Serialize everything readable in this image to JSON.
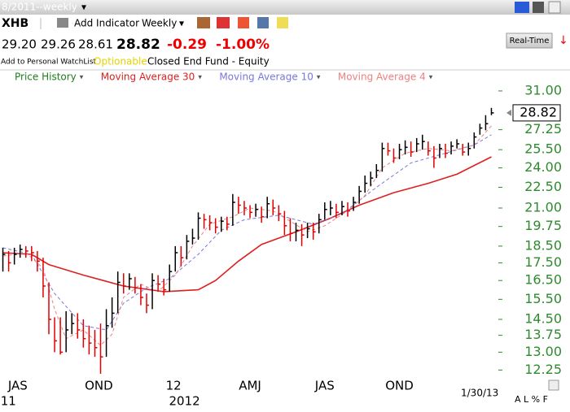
{
  "header": {
    "period": "8/2011--weekly",
    "symbol": "XHB",
    "add_indicator": "Add Indicator",
    "interval": "Weekly",
    "open": "29.20",
    "high": "29.26",
    "low": "28.61",
    "change": "-0.29",
    "change_pct": "-1.00%",
    "watchlist": "Add to Personal WatchList",
    "optionable": "Optionable",
    "fund_type": "Closed End Fund - Equity",
    "realtime": "Real-Time",
    "footer_buttons": "A L % F"
  },
  "chart_data": {
    "type": "ohlc",
    "legend": [
      "Price History",
      "Moving Average 30",
      "Moving Average 10",
      "Moving Average 4"
    ],
    "legend_colors": [
      "#1a7f1a",
      "#dd2020",
      "#7777dd",
      "#ee8080"
    ],
    "up_color": "#000000",
    "down_color": "#e00000",
    "high": [
      18.4,
      18.2,
      18.4,
      18.6,
      18.5,
      18.5,
      18.2,
      17.8,
      16.4,
      14.6,
      14.6,
      14.9,
      14.8,
      14.8,
      14.5,
      14.2,
      14.0,
      14.3,
      15.0,
      15.6,
      17.0,
      16.9,
      16.9,
      16.7,
      16.3,
      15.8,
      16.9,
      16.8,
      16.6,
      17.4,
      18.5,
      18.5,
      19.2,
      19.6,
      20.7,
      20.6,
      20.5,
      20.3,
      20.4,
      20.4,
      22.0,
      21.8,
      21.5,
      21.2,
      21.3,
      21.1,
      21.8,
      21.6,
      21.2,
      20.8,
      20.3,
      20.0,
      19.9,
      20.0,
      20.0,
      20.6,
      21.4,
      21.5,
      21.3,
      21.5,
      21.4,
      21.8,
      22.6,
      23.4,
      23.7,
      24.3,
      26.1,
      26.1,
      25.6,
      26.0,
      26.3,
      26.2,
      26.5,
      26.8,
      26.2,
      25.8,
      26.0,
      26.0,
      26.2,
      26.4,
      26.0,
      26.1,
      27.0,
      27.8,
      28.6,
      29.3
    ],
    "low": [
      17.0,
      17.0,
      17.4,
      17.8,
      17.8,
      17.6,
      17.0,
      15.6,
      13.8,
      13.0,
      12.9,
      13.0,
      13.8,
      13.6,
      13.2,
      12.9,
      12.8,
      12.1,
      12.8,
      14.1,
      14.8,
      15.8,
      16.0,
      15.8,
      15.2,
      14.8,
      15.0,
      15.9,
      15.7,
      15.9,
      17.0,
      17.3,
      17.7,
      18.6,
      18.9,
      19.6,
      19.5,
      19.3,
      19.4,
      19.5,
      19.8,
      20.6,
      20.5,
      20.3,
      20.4,
      20.0,
      20.3,
      20.5,
      20.1,
      19.2,
      18.8,
      18.8,
      18.5,
      19.0,
      18.9,
      19.3,
      20.2,
      20.5,
      20.3,
      20.5,
      20.4,
      20.8,
      21.3,
      22.1,
      22.6,
      23.2,
      23.7,
      25.0,
      24.4,
      24.7,
      25.1,
      24.9,
      25.3,
      25.5,
      25.0,
      24.0,
      24.8,
      24.8,
      25.1,
      25.6,
      25.0,
      25.0,
      25.6,
      26.8,
      27.2,
      28.6
    ],
    "close": [
      18.0,
      17.5,
      18.0,
      18.3,
      18.2,
      18.1,
      17.6,
      16.2,
      14.5,
      13.5,
      13.0,
      14.0,
      14.3,
      14.0,
      13.6,
      13.4,
      13.2,
      12.8,
      14.2,
      14.8,
      16.4,
      16.2,
      16.6,
      16.1,
      15.6,
      15.2,
      16.5,
      16.3,
      16.0,
      17.0,
      18.1,
      17.8,
      18.8,
      19.0,
      20.3,
      20.2,
      20.0,
      19.7,
      20.1,
      19.9,
      21.4,
      21.2,
      21.0,
      20.7,
      20.9,
      20.4,
      21.3,
      21.0,
      20.6,
      19.8,
      19.3,
      19.5,
      19.2,
      19.6,
      19.4,
      20.2,
      20.9,
      21.0,
      20.7,
      21.1,
      20.8,
      21.4,
      22.2,
      22.8,
      23.2,
      23.8,
      25.6,
      25.4,
      24.8,
      25.5,
      25.7,
      25.3,
      26.0,
      26.2,
      25.4,
      24.8,
      25.6,
      25.2,
      25.8,
      26.0,
      25.3,
      25.6,
      26.6,
      27.4,
      27.8,
      28.82
    ],
    "series": [
      {
        "name": "Moving Average 30",
        "color": "#dd2020",
        "dash": false,
        "x": [
          0,
          5,
          8,
          14,
          21,
          28,
          34,
          37,
          41,
          45,
          51,
          57,
          62,
          68,
          74,
          79,
          85
        ],
        "values": [
          18.1,
          18.0,
          17.4,
          16.8,
          16.2,
          15.9,
          16.0,
          16.5,
          17.6,
          18.6,
          19.4,
          20.3,
          21.2,
          22.1,
          22.8,
          23.5,
          24.9
        ]
      },
      {
        "name": "Moving Average 10",
        "color": "#7777dd",
        "dash": true,
        "x": [
          0,
          5,
          9,
          14,
          18,
          21,
          25,
          29,
          34,
          38,
          42,
          48,
          54,
          59,
          65,
          71,
          77,
          82,
          85
        ],
        "values": [
          18.4,
          18.0,
          15.8,
          14.2,
          14.0,
          15.3,
          16.1,
          16.6,
          18.0,
          19.5,
          20.2,
          20.5,
          19.9,
          20.6,
          22.5,
          24.4,
          25.2,
          25.9,
          26.8
        ]
      },
      {
        "name": "Moving Average 4",
        "color": "#ee8080",
        "dash": true,
        "x": [
          0,
          4,
          7,
          9,
          11,
          14,
          17,
          19,
          21,
          24,
          27,
          30,
          33,
          36,
          40,
          43,
          47,
          50,
          53,
          56,
          60,
          63,
          66,
          70,
          74,
          78,
          82,
          85
        ],
        "values": [
          17.9,
          18.1,
          17.2,
          15.0,
          13.6,
          14.0,
          13.3,
          13.8,
          15.6,
          16.3,
          15.9,
          16.8,
          18.5,
          19.9,
          20.4,
          21.0,
          20.8,
          20.1,
          19.4,
          19.8,
          20.8,
          21.9,
          24.0,
          25.2,
          25.6,
          25.4,
          25.9,
          27.6
        ]
      }
    ],
    "log_y": true,
    "ylim": [
      12,
      31.5
    ],
    "yticks": [
      {
        "value": 31,
        "label": "31.00"
      },
      {
        "value": 27.25,
        "label": "27.25"
      },
      {
        "value": 25.5,
        "label": "25.50"
      },
      {
        "value": 24,
        "label": "24.00"
      },
      {
        "value": 22.5,
        "label": "22.50"
      },
      {
        "value": 21,
        "label": "21.00"
      },
      {
        "value": 19.75,
        "label": "19.75"
      },
      {
        "value": 18.5,
        "label": "18.50"
      },
      {
        "value": 17.5,
        "label": "17.50"
      },
      {
        "value": 16.5,
        "label": "16.50"
      },
      {
        "value": 15.5,
        "label": "15.50"
      },
      {
        "value": 14.5,
        "label": "14.50"
      },
      {
        "value": 13.75,
        "label": "13.75"
      },
      {
        "value": 13,
        "label": "13.00"
      },
      {
        "value": 12.25,
        "label": "12.25"
      }
    ],
    "xlim": [
      -0.5,
      85.5
    ],
    "xticks": [
      {
        "value": 2.6,
        "label": "JAS"
      },
      {
        "value": 16.7,
        "label": "OND"
      },
      {
        "value": 29.7,
        "label": "12"
      },
      {
        "value": 43,
        "label": "AMJ"
      },
      {
        "value": 56,
        "label": "JAS"
      },
      {
        "value": 69,
        "label": "OND"
      }
    ],
    "year_ticks": [
      {
        "value": -0.4,
        "label": "11"
      },
      {
        "value": 28.9,
        "label": "2012"
      }
    ],
    "last_date": "1/30/13"
  }
}
